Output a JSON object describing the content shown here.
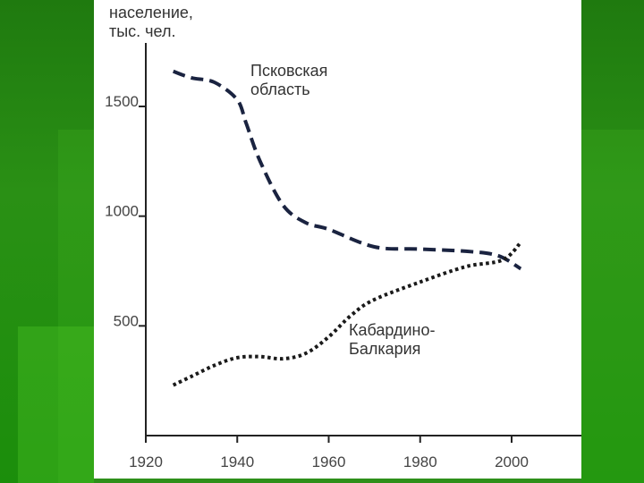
{
  "chart_data": {
    "type": "line",
    "ylabel_lines": [
      "население,",
      "тыс. чел."
    ],
    "xlabel": "",
    "xlim": [
      1920,
      2025
    ],
    "ylim": [
      0,
      1800
    ],
    "x_ticks": [
      1920,
      1940,
      1960,
      1980,
      2000
    ],
    "y_ticks": [
      500,
      1000,
      1500
    ],
    "grid": false,
    "series": [
      {
        "name": "Псковская область",
        "label_lines": [
          "Псковская",
          "область"
        ],
        "style": "dashed",
        "color": "#1a2340",
        "x": [
          1926,
          1930,
          1935,
          1940,
          1942,
          1945,
          1950,
          1955,
          1960,
          1970,
          1980,
          1990,
          1997,
          2002
        ],
        "y": [
          1660,
          1630,
          1610,
          1530,
          1420,
          1250,
          1050,
          970,
          940,
          860,
          850,
          840,
          820,
          760
        ]
      },
      {
        "name": "Кабардино-Балкария",
        "label_lines": [
          "Кабардино-",
          "Балкария"
        ],
        "style": "dotted",
        "color": "#1a1a1a",
        "x": [
          1926,
          1930,
          1935,
          1940,
          1945,
          1950,
          1955,
          1960,
          1965,
          1970,
          1980,
          1990,
          1998,
          2002
        ],
        "y": [
          230,
          270,
          320,
          355,
          360,
          350,
          375,
          450,
          550,
          620,
          700,
          770,
          800,
          880
        ]
      }
    ]
  },
  "colors": {
    "background_green": "#2e8f1a",
    "panel": "#ffffff",
    "axis": "#222222"
  }
}
